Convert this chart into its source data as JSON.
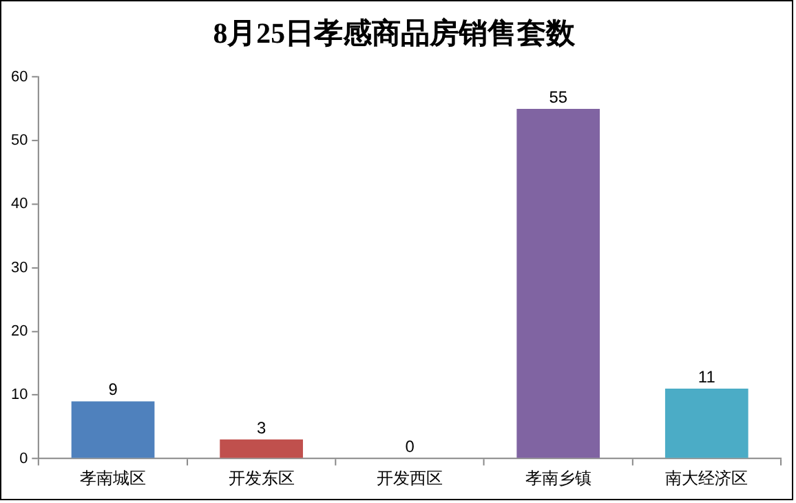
{
  "chart_data": {
    "type": "bar",
    "title": "8月25日孝感商品房销售套数",
    "categories": [
      "孝南城区",
      "开发东区",
      "开发西区",
      "孝南乡镇",
      "南大经济区"
    ],
    "values": [
      9,
      3,
      0,
      55,
      11
    ],
    "colors": [
      "#4f81bd",
      "#c0504d",
      "#9bbb59",
      "#8064a2",
      "#4bacc6"
    ],
    "ylim": [
      0,
      60
    ],
    "yticks": [
      0,
      10,
      20,
      30,
      40,
      50,
      60
    ],
    "grid": false,
    "legend": false,
    "data_labels": true
  }
}
